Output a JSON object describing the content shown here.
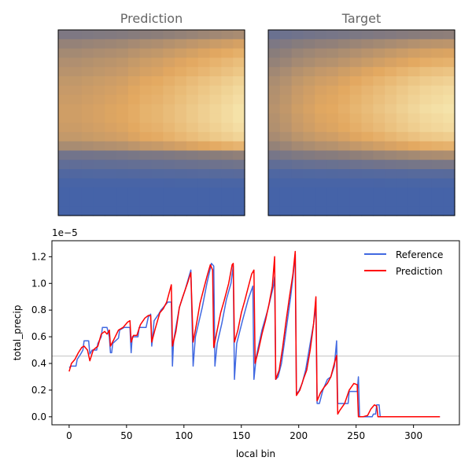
{
  "chart_data": [
    {
      "type": "heatmap",
      "title": "Prediction",
      "grid": {
        "rows": 20,
        "cols": 16
      },
      "colormap": [
        "#4563a8",
        "#8a7d7b",
        "#e3a860",
        "#f7e8b0"
      ],
      "profile": {
        "rows": [
          0.38,
          0.52,
          0.6,
          0.66,
          0.7,
          0.75,
          0.78,
          0.8,
          0.82,
          0.82,
          0.8,
          0.76,
          0.62,
          0.3,
          0.18,
          0.08,
          0.02,
          0.0,
          0.0,
          0.0
        ],
        "cols": [
          0.72,
          0.72,
          0.74,
          0.76,
          0.78,
          0.8,
          0.84,
          0.88,
          0.9,
          0.94,
          0.98,
          1.02,
          1.06,
          1.1,
          1.14,
          1.18
        ],
        "max": 1.0
      }
    },
    {
      "type": "heatmap",
      "title": "Target",
      "grid": {
        "rows": 20,
        "cols": 16
      },
      "colormap": [
        "#4563a8",
        "#8a7d7b",
        "#e3a860",
        "#f7e8b0"
      ],
      "profile": {
        "rows": [
          0.3,
          0.45,
          0.55,
          0.62,
          0.7,
          0.76,
          0.8,
          0.82,
          0.84,
          0.82,
          0.8,
          0.74,
          0.62,
          0.4,
          0.22,
          0.08,
          0.02,
          0.0,
          0.0,
          0.0
        ],
        "cols": [
          0.6,
          0.64,
          0.7,
          0.74,
          0.78,
          0.8,
          0.84,
          0.88,
          0.92,
          0.96,
          1.0,
          1.04,
          1.08,
          1.12,
          1.14,
          1.16
        ],
        "max": 1.0
      }
    },
    {
      "type": "line",
      "title": "",
      "xlabel": "local bin",
      "ylabel": "total_precip",
      "offset_text": "1e−5",
      "xlim": [
        -15,
        340
      ],
      "ylim": [
        -0.06,
        1.32
      ],
      "xticks": [
        0,
        50,
        100,
        150,
        200,
        250,
        300
      ],
      "yticks": [
        0.0,
        0.2,
        0.4,
        0.6,
        0.8,
        1.0,
        1.2
      ],
      "ytick_labels": [
        "0.0",
        "0.2",
        "0.4",
        "0.6",
        "0.8",
        "1.0",
        "1.2"
      ],
      "hline": 0.455,
      "legend": "top-right",
      "series": [
        {
          "name": "Reference",
          "color": "#4169e1",
          "points": [
            [
              0,
              0.37
            ],
            [
              2,
              0.38
            ],
            [
              6,
              0.38
            ],
            [
              7,
              0.43
            ],
            [
              10,
              0.47
            ],
            [
              12,
              0.5
            ],
            [
              13,
              0.57
            ],
            [
              17,
              0.57
            ],
            [
              18,
              0.47
            ],
            [
              20,
              0.5
            ],
            [
              24,
              0.5
            ],
            [
              25,
              0.55
            ],
            [
              28,
              0.6
            ],
            [
              29,
              0.67
            ],
            [
              33,
              0.67
            ],
            [
              35,
              0.6
            ],
            [
              36,
              0.48
            ],
            [
              37,
              0.48
            ],
            [
              38,
              0.55
            ],
            [
              43,
              0.59
            ],
            [
              44,
              0.65
            ],
            [
              48,
              0.67
            ],
            [
              53,
              0.67
            ],
            [
              54,
              0.48
            ],
            [
              55,
              0.6
            ],
            [
              60,
              0.6
            ],
            [
              61,
              0.67
            ],
            [
              67,
              0.67
            ],
            [
              69,
              0.75
            ],
            [
              71,
              0.77
            ],
            [
              72,
              0.53
            ],
            [
              74,
              0.72
            ],
            [
              78,
              0.77
            ],
            [
              80,
              0.8
            ],
            [
              86,
              0.86
            ],
            [
              89,
              0.86
            ],
            [
              90,
              0.38
            ],
            [
              91,
              0.57
            ],
            [
              96,
              0.82
            ],
            [
              101,
              0.95
            ],
            [
              106,
              1.1
            ],
            [
              108,
              0.38
            ],
            [
              110,
              0.6
            ],
            [
              116,
              0.82
            ],
            [
              120,
              1.0
            ],
            [
              124,
              1.15
            ],
            [
              126,
              1.13
            ],
            [
              127,
              0.38
            ],
            [
              129,
              0.55
            ],
            [
              133,
              0.7
            ],
            [
              137,
              0.88
            ],
            [
              141,
              1.0
            ],
            [
              143,
              1.13
            ],
            [
              144,
              0.28
            ],
            [
              146,
              0.55
            ],
            [
              151,
              0.72
            ],
            [
              156,
              0.88
            ],
            [
              160,
              0.98
            ],
            [
              161,
              0.28
            ],
            [
              163,
              0.45
            ],
            [
              168,
              0.65
            ],
            [
              173,
              0.8
            ],
            [
              178,
              0.98
            ],
            [
              179,
              1.05
            ],
            [
              180,
              0.28
            ],
            [
              182,
              0.3
            ],
            [
              185,
              0.4
            ],
            [
              189,
              0.65
            ],
            [
              193,
              0.9
            ],
            [
              195,
              1.05
            ],
            [
              197,
              1.22
            ],
            [
              198,
              0.18
            ],
            [
              200,
              0.19
            ],
            [
              203,
              0.25
            ],
            [
              206,
              0.35
            ],
            [
              210,
              0.55
            ],
            [
              213,
              0.7
            ],
            [
              215,
              0.82
            ],
            [
              216,
              0.1
            ],
            [
              218,
              0.1
            ],
            [
              221,
              0.2
            ],
            [
              225,
              0.28
            ],
            [
              228,
              0.3
            ],
            [
              231,
              0.38
            ],
            [
              233,
              0.57
            ],
            [
              234,
              0.1
            ],
            [
              243,
              0.1
            ],
            [
              244,
              0.19
            ],
            [
              251,
              0.19
            ],
            [
              252,
              0.3
            ],
            [
              253,
              0.0
            ],
            [
              264,
              0.0
            ],
            [
              265,
              0.02
            ],
            [
              267,
              0.02
            ],
            [
              268,
              0.09
            ],
            [
              270,
              0.09
            ],
            [
              271,
              0.0
            ],
            [
              323,
              0.0
            ]
          ]
        },
        {
          "name": "Prediction",
          "color": "#ff0000",
          "points": [
            [
              0,
              0.34
            ],
            [
              2,
              0.4
            ],
            [
              5,
              0.43
            ],
            [
              8,
              0.48
            ],
            [
              11,
              0.52
            ],
            [
              13,
              0.53
            ],
            [
              16,
              0.5
            ],
            [
              18,
              0.42
            ],
            [
              21,
              0.5
            ],
            [
              25,
              0.53
            ],
            [
              28,
              0.62
            ],
            [
              31,
              0.64
            ],
            [
              33,
              0.62
            ],
            [
              35,
              0.65
            ],
            [
              36,
              0.53
            ],
            [
              39,
              0.58
            ],
            [
              43,
              0.65
            ],
            [
              47,
              0.67
            ],
            [
              51,
              0.71
            ],
            [
              53,
              0.72
            ],
            [
              54,
              0.56
            ],
            [
              56,
              0.61
            ],
            [
              59,
              0.61
            ],
            [
              62,
              0.69
            ],
            [
              66,
              0.74
            ],
            [
              69,
              0.76
            ],
            [
              71,
              0.76
            ],
            [
              72,
              0.56
            ],
            [
              75,
              0.66
            ],
            [
              79,
              0.78
            ],
            [
              82,
              0.81
            ],
            [
              85,
              0.86
            ],
            [
              89,
              0.99
            ],
            [
              90,
              0.53
            ],
            [
              93,
              0.64
            ],
            [
              96,
              0.82
            ],
            [
              99,
              0.9
            ],
            [
              103,
              1.0
            ],
            [
              106,
              1.08
            ],
            [
              108,
              0.56
            ],
            [
              111,
              0.7
            ],
            [
              114,
              0.85
            ],
            [
              117,
              0.95
            ],
            [
              120,
              1.05
            ],
            [
              123,
              1.14
            ],
            [
              125,
              1.1
            ],
            [
              126,
              0.52
            ],
            [
              129,
              0.65
            ],
            [
              132,
              0.78
            ],
            [
              135,
              0.87
            ],
            [
              139,
              1.0
            ],
            [
              142,
              1.14
            ],
            [
              143,
              1.15
            ],
            [
              144,
              0.56
            ],
            [
              147,
              0.65
            ],
            [
              150,
              0.78
            ],
            [
              153,
              0.87
            ],
            [
              156,
              0.97
            ],
            [
              159,
              1.07
            ],
            [
              161,
              1.1
            ],
            [
              162,
              0.4
            ],
            [
              165,
              0.5
            ],
            [
              168,
              0.62
            ],
            [
              171,
              0.72
            ],
            [
              174,
              0.84
            ],
            [
              177,
              0.98
            ],
            [
              179,
              1.2
            ],
            [
              180,
              0.28
            ],
            [
              183,
              0.35
            ],
            [
              186,
              0.52
            ],
            [
              189,
              0.72
            ],
            [
              192,
              0.9
            ],
            [
              195,
              1.07
            ],
            [
              197,
              1.24
            ],
            [
              198,
              0.16
            ],
            [
              201,
              0.2
            ],
            [
              204,
              0.28
            ],
            [
              207,
              0.35
            ],
            [
              210,
              0.5
            ],
            [
              213,
              0.7
            ],
            [
              215,
              0.9
            ],
            [
              216,
              0.12
            ],
            [
              219,
              0.18
            ],
            [
              222,
              0.22
            ],
            [
              225,
              0.25
            ],
            [
              228,
              0.3
            ],
            [
              231,
              0.4
            ],
            [
              233,
              0.46
            ],
            [
              234,
              0.02
            ],
            [
              236,
              0.05
            ],
            [
              240,
              0.1
            ],
            [
              244,
              0.2
            ],
            [
              248,
              0.25
            ],
            [
              251,
              0.24
            ],
            [
              252,
              0.0
            ],
            [
              256,
              0.0
            ],
            [
              260,
              0.01
            ],
            [
              263,
              0.06
            ],
            [
              266,
              0.09
            ],
            [
              268,
              0.08
            ],
            [
              269,
              0.0
            ],
            [
              323,
              0.0
            ]
          ]
        }
      ]
    }
  ]
}
